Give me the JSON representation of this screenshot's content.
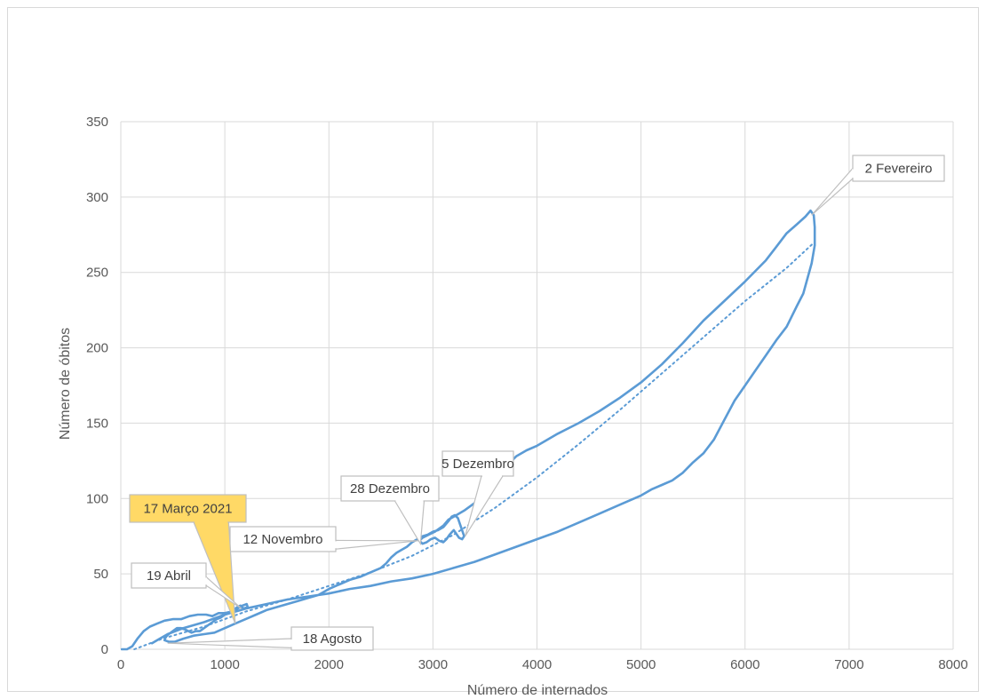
{
  "chart_data": {
    "type": "line",
    "xlabel": "Número de internados",
    "ylabel": "Número de óbitos",
    "xlim": [
      0,
      8000
    ],
    "ylim": [
      0,
      350
    ],
    "xticks": [
      0,
      1000,
      2000,
      3000,
      4000,
      5000,
      6000,
      7000,
      8000
    ],
    "yticks": [
      0,
      50,
      100,
      150,
      200,
      250,
      300,
      350
    ],
    "grid": true,
    "colors": {
      "series": "#5b9bd5",
      "trend": "#5b9bd5",
      "highlight_fill": "#ffd966"
    },
    "series": [
      {
        "style": "solid",
        "points": [
          [
            10,
            0
          ],
          [
            60,
            0
          ],
          [
            110,
            2
          ],
          [
            160,
            7
          ],
          [
            220,
            12
          ],
          [
            280,
            15
          ],
          [
            350,
            17
          ],
          [
            420,
            19
          ],
          [
            500,
            20
          ],
          [
            580,
            20
          ],
          [
            660,
            22
          ],
          [
            740,
            23
          ],
          [
            820,
            23
          ],
          [
            880,
            22
          ],
          [
            940,
            24
          ],
          [
            1000,
            24
          ],
          [
            1060,
            25
          ],
          [
            1120,
            27
          ],
          [
            1170,
            29
          ],
          [
            1210,
            30
          ],
          [
            1220,
            28
          ],
          [
            1180,
            27
          ],
          [
            1150,
            29
          ],
          [
            1120,
            28
          ],
          [
            1080,
            26
          ],
          [
            1040,
            24
          ],
          [
            1000,
            23
          ],
          [
            960,
            21
          ],
          [
            920,
            20
          ],
          [
            880,
            18
          ],
          [
            840,
            16
          ],
          [
            800,
            14
          ],
          [
            760,
            12
          ],
          [
            720,
            12
          ],
          [
            680,
            11
          ],
          [
            650,
            12
          ],
          [
            620,
            13
          ],
          [
            580,
            14
          ],
          [
            540,
            14
          ],
          [
            500,
            12
          ],
          [
            460,
            10
          ],
          [
            430,
            8
          ],
          [
            420,
            6
          ],
          [
            460,
            5
          ],
          [
            520,
            5
          ],
          [
            600,
            7
          ],
          [
            700,
            9
          ],
          [
            800,
            10
          ],
          [
            900,
            11
          ],
          [
            1000,
            14
          ],
          [
            1100,
            17
          ],
          [
            1200,
            20
          ],
          [
            1300,
            23
          ],
          [
            1400,
            26
          ],
          [
            1500,
            28
          ],
          [
            1600,
            30
          ],
          [
            1700,
            32
          ],
          [
            1800,
            34
          ],
          [
            1900,
            36
          ],
          [
            2000,
            40
          ],
          [
            2100,
            43
          ],
          [
            2200,
            46
          ],
          [
            2300,
            48
          ],
          [
            2400,
            51
          ],
          [
            2500,
            54
          ],
          [
            2550,
            57
          ],
          [
            2600,
            61
          ],
          [
            2650,
            64
          ],
          [
            2700,
            66
          ],
          [
            2750,
            68
          ],
          [
            2800,
            71
          ],
          [
            2850,
            73
          ],
          [
            2900,
            75
          ],
          [
            2950,
            76
          ],
          [
            3000,
            78
          ],
          [
            3050,
            79
          ],
          [
            3100,
            81
          ],
          [
            3150,
            85
          ],
          [
            3180,
            88
          ],
          [
            3210,
            89
          ],
          [
            3240,
            87
          ],
          [
            3260,
            83
          ],
          [
            3280,
            79
          ],
          [
            3300,
            75
          ],
          [
            3280,
            73
          ],
          [
            3250,
            74
          ],
          [
            3220,
            77
          ],
          [
            3200,
            79
          ],
          [
            3160,
            76
          ],
          [
            3130,
            73
          ],
          [
            3100,
            71
          ],
          [
            3060,
            72
          ],
          [
            3020,
            74
          ],
          [
            2980,
            73
          ],
          [
            2940,
            71
          ],
          [
            2900,
            70
          ],
          [
            2870,
            72
          ],
          [
            2900,
            74
          ],
          [
            2960,
            76
          ],
          [
            3020,
            78
          ],
          [
            3100,
            82
          ],
          [
            3150,
            86
          ],
          [
            3200,
            88
          ],
          [
            3300,
            92
          ],
          [
            3400,
            97
          ],
          [
            3500,
            105
          ],
          [
            3600,
            114
          ],
          [
            3700,
            121
          ],
          [
            3800,
            128
          ],
          [
            3900,
            132
          ],
          [
            4000,
            135
          ],
          [
            4200,
            143
          ],
          [
            4400,
            150
          ],
          [
            4600,
            158
          ],
          [
            4800,
            167
          ],
          [
            5000,
            177
          ],
          [
            5200,
            189
          ],
          [
            5400,
            203
          ],
          [
            5600,
            218
          ],
          [
            5800,
            231
          ],
          [
            6000,
            244
          ],
          [
            6200,
            258
          ],
          [
            6300,
            267
          ],
          [
            6400,
            276
          ],
          [
            6500,
            282
          ],
          [
            6580,
            287
          ],
          [
            6630,
            291
          ],
          [
            6660,
            288
          ],
          [
            6670,
            280
          ],
          [
            6670,
            268
          ],
          [
            6640,
            256
          ],
          [
            6560,
            236
          ],
          [
            6500,
            228
          ],
          [
            6400,
            214
          ],
          [
            6300,
            205
          ],
          [
            6200,
            195
          ],
          [
            6100,
            185
          ],
          [
            6000,
            175
          ],
          [
            5900,
            165
          ],
          [
            5800,
            152
          ],
          [
            5700,
            139
          ],
          [
            5600,
            130
          ],
          [
            5500,
            124
          ],
          [
            5400,
            117
          ],
          [
            5300,
            112
          ],
          [
            5200,
            109
          ],
          [
            5100,
            106
          ],
          [
            5000,
            102
          ],
          [
            4800,
            96
          ],
          [
            4600,
            90
          ],
          [
            4400,
            84
          ],
          [
            4200,
            78
          ],
          [
            4000,
            73
          ],
          [
            3800,
            68
          ],
          [
            3600,
            63
          ],
          [
            3400,
            58
          ],
          [
            3200,
            54
          ],
          [
            3000,
            50
          ],
          [
            2800,
            47
          ],
          [
            2600,
            45
          ],
          [
            2400,
            42
          ],
          [
            2200,
            40
          ],
          [
            2000,
            37
          ],
          [
            1800,
            35
          ],
          [
            1600,
            33
          ],
          [
            1400,
            30
          ],
          [
            1200,
            27
          ],
          [
            1000,
            23
          ],
          [
            800,
            18
          ],
          [
            600,
            14
          ],
          [
            450,
            10
          ],
          [
            350,
            6
          ],
          [
            300,
            4
          ]
        ]
      },
      {
        "style": "dotted",
        "points": [
          [
            130,
            0
          ],
          [
            400,
            7
          ],
          [
            800,
            15
          ],
          [
            1200,
            25
          ],
          [
            1600,
            33
          ],
          [
            2000,
            42
          ],
          [
            2400,
            51
          ],
          [
            2800,
            62
          ],
          [
            3200,
            76
          ],
          [
            3600,
            94
          ],
          [
            4000,
            114
          ],
          [
            4400,
            136
          ],
          [
            4800,
            159
          ],
          [
            5200,
            183
          ],
          [
            5600,
            207
          ],
          [
            6000,
            231
          ],
          [
            6400,
            253
          ],
          [
            6650,
            269
          ]
        ]
      }
    ],
    "annotations": [
      {
        "text": "2 Fevereiro",
        "point": [
          6640,
          288
        ],
        "highlight": false
      },
      {
        "text": "5 Dezembro",
        "point": [
          3310,
          75
        ],
        "highlight": false
      },
      {
        "text": "28 Dezembro",
        "point": [
          2880,
          70
        ],
        "highlight": false
      },
      {
        "text": "12 Novembro",
        "point": [
          2860,
          72
        ],
        "highlight": false
      },
      {
        "text": "17 Março 2021",
        "point": [
          1100,
          17
        ],
        "highlight": true
      },
      {
        "text": "19 Abril",
        "point": [
          1160,
          27
        ],
        "highlight": false
      },
      {
        "text": "18 Agosto",
        "point": [
          450,
          4
        ],
        "highlight": false
      }
    ]
  }
}
